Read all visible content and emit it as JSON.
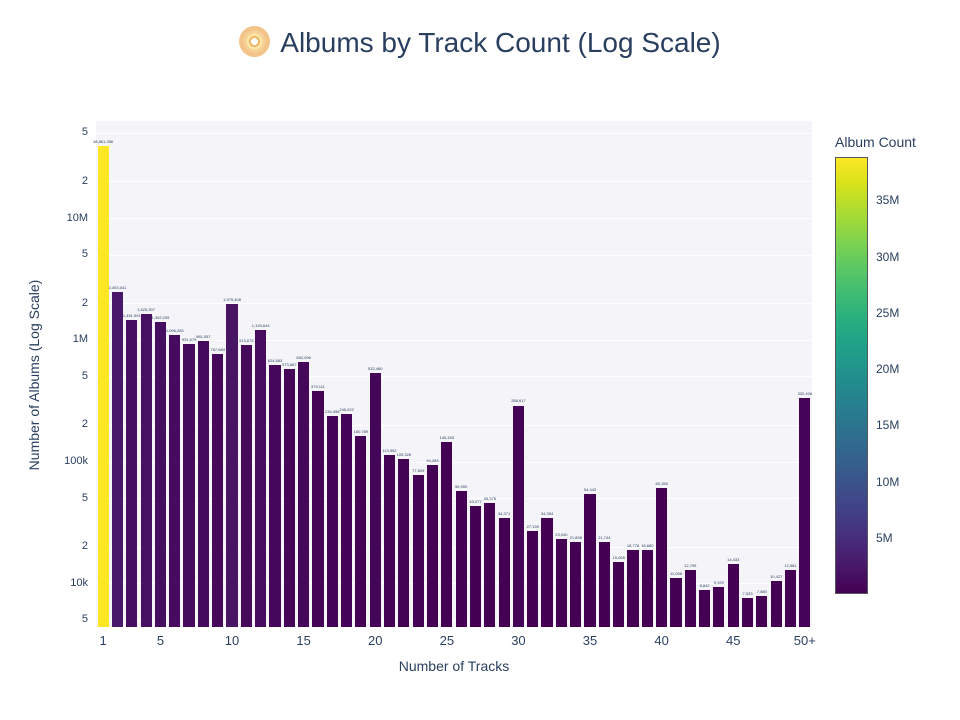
{
  "title": {
    "icon": "cd-icon",
    "text": "Albums by Track Count (Log Scale)"
  },
  "chart_data": {
    "type": "bar",
    "title": "Albums by Track Count (Log Scale)",
    "xlabel": "Number of Tracks",
    "ylabel": "Number of Albums (Log Scale)",
    "yaxis_scale": "log",
    "ylim_log10": [
      3.64,
      7.8
    ],
    "grid": true,
    "colormap": "viridis",
    "bar_value_labels_visible": true,
    "categories": [
      "1",
      "2",
      "3",
      "4",
      "5",
      "6",
      "7",
      "8",
      "9",
      "10",
      "11",
      "12",
      "13",
      "14",
      "15",
      "16",
      "17",
      "18",
      "19",
      "20",
      "21",
      "22",
      "23",
      "24",
      "25",
      "26",
      "27",
      "28",
      "29",
      "30",
      "31",
      "32",
      "33",
      "34",
      "35",
      "36",
      "37",
      "38",
      "39",
      "40",
      "41",
      "42",
      "43",
      "44",
      "45",
      "46",
      "47",
      "48",
      "49",
      "50+"
    ],
    "values": [
      38861356,
      2453041,
      1451991,
      1625307,
      1392039,
      1096283,
      931675,
      981057,
      767684,
      1975408,
      913675,
      1193644,
      624583,
      573687,
      652096,
      379111,
      234496,
      246022,
      160789,
      532460,
      113952,
      105326,
      77829,
      94283,
      145453,
      56900,
      43077,
      45376,
      34371,
      288617,
      27139,
      34354,
      23040,
      21898,
      54443,
      21744,
      15065,
      18778,
      18680,
      60158,
      11098,
      12795,
      8842,
      9329,
      14433,
      7533,
      7880,
      10427,
      12981,
      332406
    ],
    "x_ticks": [
      {
        "label": "1",
        "index": 0
      },
      {
        "label": "5",
        "index": 4
      },
      {
        "label": "10",
        "index": 9
      },
      {
        "label": "15",
        "index": 14
      },
      {
        "label": "20",
        "index": 19
      },
      {
        "label": "25",
        "index": 24
      },
      {
        "label": "30",
        "index": 29
      },
      {
        "label": "35",
        "index": 34
      },
      {
        "label": "40",
        "index": 39
      },
      {
        "label": "45",
        "index": 44
      },
      {
        "label": "50+",
        "index": 49
      }
    ],
    "y_ticks": [
      {
        "label": "5",
        "value": 50000000
      },
      {
        "label": "2",
        "value": 20000000
      },
      {
        "label": "10M",
        "value": 10000000
      },
      {
        "label": "5",
        "value": 5000000
      },
      {
        "label": "2",
        "value": 2000000
      },
      {
        "label": "1M",
        "value": 1000000
      },
      {
        "label": "5",
        "value": 500000
      },
      {
        "label": "2",
        "value": 200000
      },
      {
        "label": "100k",
        "value": 100000
      },
      {
        "label": "5",
        "value": 50000
      },
      {
        "label": "2",
        "value": 20000
      },
      {
        "label": "10k",
        "value": 10000
      },
      {
        "label": "5",
        "value": 5000
      }
    ],
    "legend_position": "right",
    "colorbar": {
      "title": "Album Count",
      "min": 7533,
      "max": 38861356,
      "ticks": [
        {
          "label": "5M",
          "value": 5000000
        },
        {
          "label": "10M",
          "value": 10000000
        },
        {
          "label": "15M",
          "value": 15000000
        },
        {
          "label": "20M",
          "value": 20000000
        },
        {
          "label": "25M",
          "value": 25000000
        },
        {
          "label": "30M",
          "value": 30000000
        },
        {
          "label": "35M",
          "value": 35000000
        }
      ]
    }
  },
  "colors": {
    "font": "#2a3f5f",
    "plot_background": "#f5f4f8",
    "gridline": "#ffffff",
    "paper_background": "#ffffff",
    "max_bar": "#fde725",
    "min_bar": "#440154"
  }
}
